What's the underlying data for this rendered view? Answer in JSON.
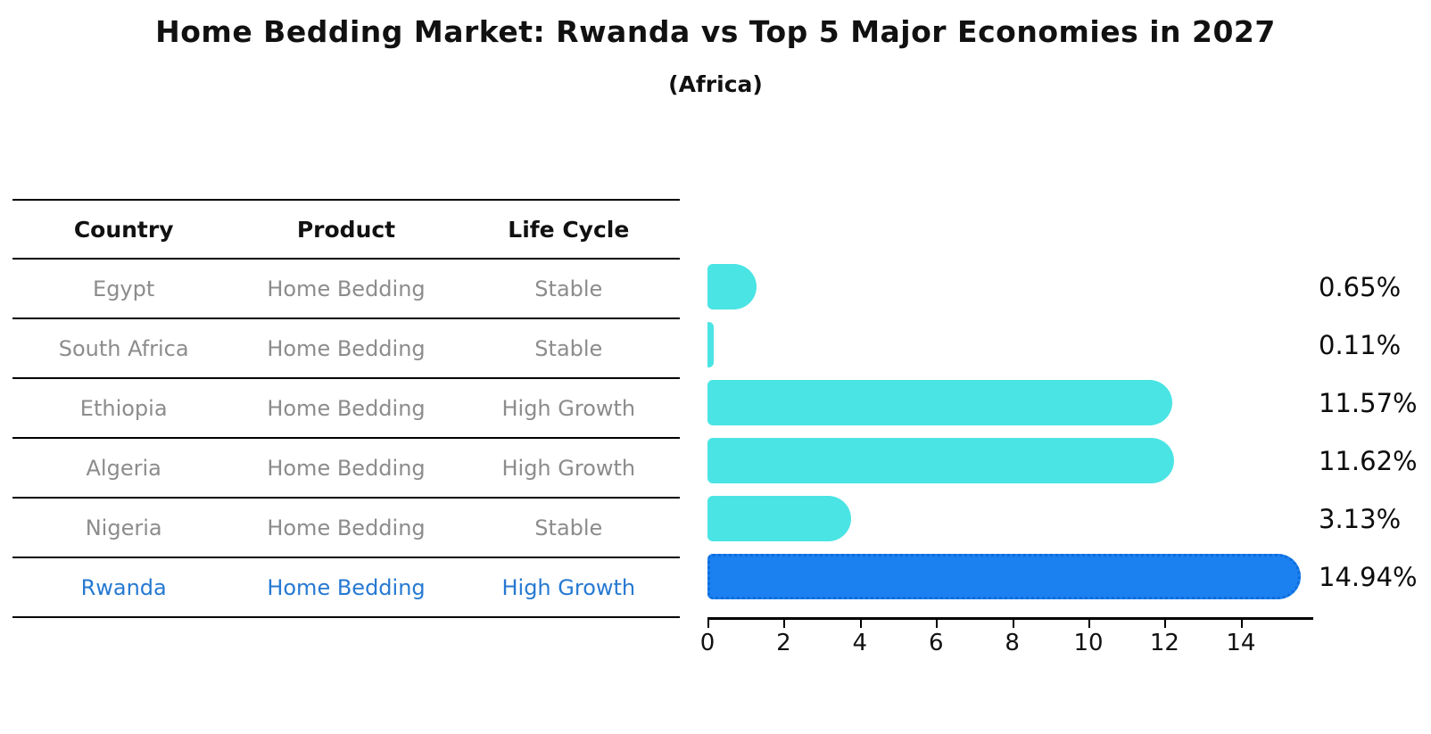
{
  "title": "Home Bedding Market: Rwanda vs Top 5 Major Economies in 2027",
  "subtitle": "(Africa)",
  "table": {
    "headers": [
      "Country",
      "Product",
      "Life Cycle"
    ],
    "rows": [
      {
        "country": "Egypt",
        "product": "Home Bedding",
        "life_cycle": "Stable",
        "highlight": false
      },
      {
        "country": "South Africa",
        "product": "Home Bedding",
        "life_cycle": "Stable",
        "highlight": false
      },
      {
        "country": "Ethiopia",
        "product": "Home Bedding",
        "life_cycle": "High Growth",
        "highlight": false
      },
      {
        "country": "Algeria",
        "product": "Home Bedding",
        "life_cycle": "High Growth",
        "highlight": false
      },
      {
        "country": "Nigeria",
        "product": "Home Bedding",
        "life_cycle": "Stable",
        "highlight": false
      },
      {
        "country": "Rwanda",
        "product": "Home Bedding",
        "life_cycle": "High Growth",
        "highlight": true
      }
    ]
  },
  "chart_data": {
    "type": "bar",
    "orientation": "horizontal",
    "title": "Home Bedding Market: Rwanda vs Top 5 Major Economies in 2027",
    "subtitle": "(Africa)",
    "categories": [
      "Egypt",
      "South Africa",
      "Ethiopia",
      "Algeria",
      "Nigeria",
      "Rwanda"
    ],
    "values": [
      0.65,
      0.11,
      11.57,
      11.62,
      3.13,
      14.94
    ],
    "value_labels": [
      "0.65%",
      "0.11%",
      "11.57%",
      "11.62%",
      "3.13%",
      "14.94%"
    ],
    "x_ticks": [
      0,
      2,
      4,
      6,
      8,
      10,
      12,
      14
    ],
    "xlim": [
      0,
      15.9
    ],
    "grid": false,
    "legend": "none",
    "bar_color": "#4be4e4",
    "highlight_color": "#1b80f0",
    "highlight_index": 5,
    "highlight_edge_style": "dotted",
    "text_color": "#111111",
    "muted_text_color": "#8c8c8c",
    "highlight_text_color": "#2679d2"
  }
}
